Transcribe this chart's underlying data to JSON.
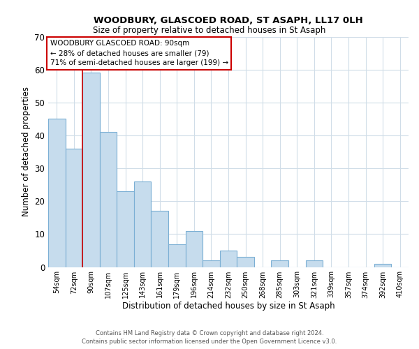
{
  "title": "WOODBURY, GLASCOED ROAD, ST ASAPH, LL17 0LH",
  "subtitle": "Size of property relative to detached houses in St Asaph",
  "xlabel": "Distribution of detached houses by size in St Asaph",
  "ylabel": "Number of detached properties",
  "bar_labels": [
    "54sqm",
    "72sqm",
    "90sqm",
    "107sqm",
    "125sqm",
    "143sqm",
    "161sqm",
    "179sqm",
    "196sqm",
    "214sqm",
    "232sqm",
    "250sqm",
    "268sqm",
    "285sqm",
    "303sqm",
    "321sqm",
    "339sqm",
    "357sqm",
    "374sqm",
    "392sqm",
    "410sqm"
  ],
  "bar_values": [
    45,
    36,
    59,
    41,
    23,
    26,
    17,
    7,
    11,
    2,
    5,
    3,
    0,
    2,
    0,
    2,
    0,
    0,
    0,
    1,
    0
  ],
  "bar_color": "#c6dced",
  "bar_edge_color": "#7bafd4",
  "highlight_bar_index": 2,
  "highlight_line_color": "#cc0000",
  "ylim": [
    0,
    70
  ],
  "yticks": [
    0,
    10,
    20,
    30,
    40,
    50,
    60,
    70
  ],
  "annotation_title": "WOODBURY GLASCOED ROAD: 90sqm",
  "annotation_line1": "← 28% of detached houses are smaller (79)",
  "annotation_line2": "71% of semi-detached houses are larger (199) →",
  "annotation_box_color": "#ffffff",
  "annotation_box_edge": "#cc0000",
  "footer_line1": "Contains HM Land Registry data © Crown copyright and database right 2024.",
  "footer_line2": "Contains public sector information licensed under the Open Government Licence v3.0.",
  "background_color": "#ffffff",
  "grid_color": "#d0dde8"
}
